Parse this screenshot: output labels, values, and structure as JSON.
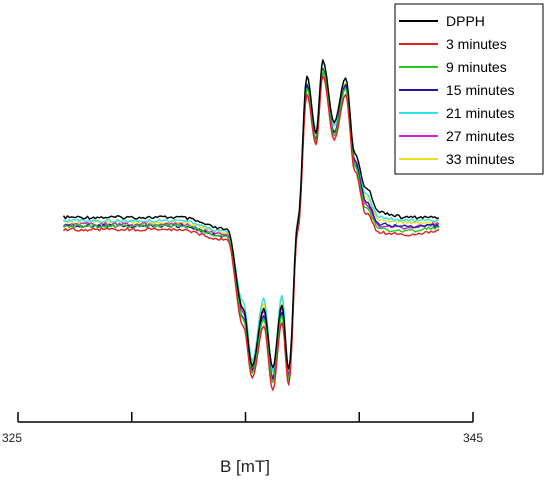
{
  "chart_data": {
    "type": "line",
    "title": "",
    "xlabel": "B [mT]",
    "ylabel": "",
    "xlim": [
      325,
      345
    ],
    "ylim": [
      -1,
      1
    ],
    "x_ticks": [
      325,
      330,
      335,
      340,
      345
    ],
    "x_tick_labels": [
      "325",
      "",
      "",
      "",
      "345"
    ],
    "grid": false,
    "legend_position": "top-right",
    "x": [
      327,
      332,
      334.2,
      334.9,
      335.3,
      335.8,
      336.2,
      336.6,
      336.9,
      337.3,
      337.7,
      338.1,
      338.4,
      338.9,
      339.4,
      339.8,
      340.3,
      340.9,
      342,
      343.5
    ],
    "series": [
      {
        "name": "DPPH",
        "color": "#000000",
        "values": [
          0.03,
          0.03,
          -0.04,
          -0.5,
          -0.83,
          -0.5,
          -0.84,
          -0.48,
          -0.85,
          0,
          0.85,
          0.52,
          0.94,
          0.58,
          0.84,
          0.4,
          0.2,
          0.06,
          0.03,
          0.03
        ]
      },
      {
        "name": "3 minutes",
        "color": "#e02020",
        "values": [
          -0.04,
          -0.04,
          -0.1,
          -0.6,
          -0.9,
          -0.6,
          -0.97,
          -0.58,
          -0.94,
          -0.05,
          0.74,
          0.45,
          0.85,
          0.48,
          0.74,
          0.3,
          0.05,
          -0.06,
          -0.07,
          -0.05
        ]
      },
      {
        "name": "9 minutes",
        "color": "#22cc22",
        "values": [
          -0.02,
          -0.02,
          -0.08,
          -0.56,
          -0.87,
          -0.56,
          -0.93,
          -0.54,
          -0.91,
          -0.03,
          0.78,
          0.47,
          0.88,
          0.5,
          0.78,
          0.33,
          0.08,
          -0.04,
          -0.05,
          -0.03
        ]
      },
      {
        "name": "15 minutes",
        "color": "#1a1aa0",
        "values": [
          -0.02,
          -0.02,
          -0.08,
          -0.55,
          -0.86,
          -0.54,
          -0.91,
          -0.52,
          -0.9,
          -0.02,
          0.8,
          0.48,
          0.89,
          0.52,
          0.8,
          0.36,
          0.12,
          -0.01,
          -0.02,
          -0.02
        ]
      },
      {
        "name": "21 minutes",
        "color": "#33e0e8",
        "values": [
          0.01,
          0.01,
          -0.05,
          -0.46,
          -0.8,
          -0.44,
          -0.86,
          -0.42,
          -0.86,
          0.02,
          0.84,
          0.54,
          0.93,
          0.56,
          0.84,
          0.4,
          0.16,
          0.03,
          0.01,
          0.01
        ]
      },
      {
        "name": "27 minutes",
        "color": "#cc22cc",
        "values": [
          -0.01,
          -0.01,
          -0.07,
          -0.52,
          -0.85,
          -0.51,
          -0.9,
          -0.49,
          -0.89,
          -0.01,
          0.79,
          0.47,
          0.87,
          0.5,
          0.78,
          0.34,
          0.1,
          -0.02,
          -0.03,
          -0.01
        ]
      },
      {
        "name": "33 minutes",
        "color": "#e8e020",
        "values": [
          0,
          0,
          -0.06,
          -0.49,
          -0.82,
          -0.47,
          -0.87,
          -0.44,
          -0.87,
          0.01,
          0.81,
          0.5,
          0.9,
          0.53,
          0.81,
          0.37,
          0.14,
          0.01,
          0,
          0
        ]
      }
    ]
  }
}
